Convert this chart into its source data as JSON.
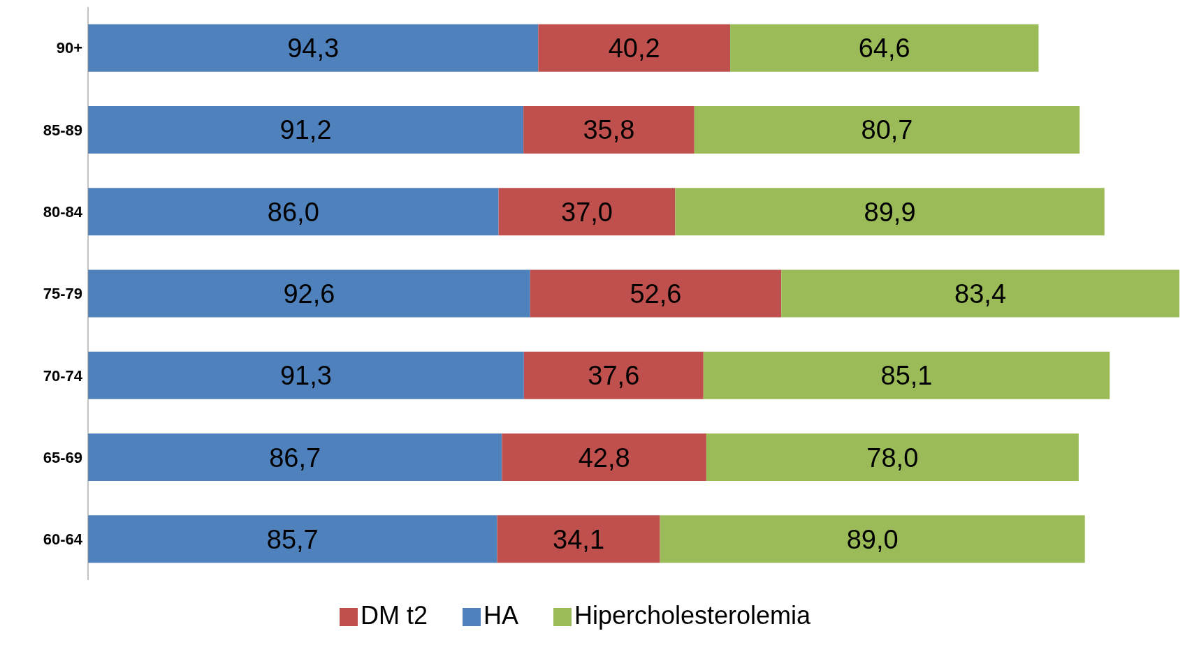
{
  "chart_data": {
    "type": "bar",
    "orientation": "horizontal",
    "stacked": true,
    "legend": "bottom",
    "grid": false,
    "tick_labels": "y",
    "categories": [
      "90+",
      "85-89",
      "80-84",
      "75-79",
      "70-74",
      "65-69",
      "60-64"
    ],
    "series": [
      {
        "name": "HA",
        "color": "#4f81bd",
        "values": [
          94.3,
          91.2,
          86.0,
          92.6,
          91.3,
          86.7,
          85.7
        ],
        "value_labels": [
          "94,3",
          "91,2",
          "86,0",
          "92,6",
          "91,3",
          "86,7",
          "85,7"
        ]
      },
      {
        "name": "DM t2",
        "color": "#c0504d",
        "values": [
          40.2,
          35.8,
          37.0,
          52.6,
          37.6,
          42.8,
          34.1
        ],
        "value_labels": [
          "40,2",
          "35,8",
          "37,0",
          "52,6",
          "37,6",
          "42,8",
          "34,1"
        ]
      },
      {
        "name": "Hipercholesterolemia",
        "color": "#9bbb59",
        "values": [
          64.6,
          80.7,
          89.9,
          83.4,
          85.1,
          78.0,
          89.0
        ],
        "value_labels": [
          "64,6",
          "80,7",
          "89,9",
          "83,4",
          "85,1",
          "78,0",
          "89,0"
        ]
      }
    ]
  }
}
